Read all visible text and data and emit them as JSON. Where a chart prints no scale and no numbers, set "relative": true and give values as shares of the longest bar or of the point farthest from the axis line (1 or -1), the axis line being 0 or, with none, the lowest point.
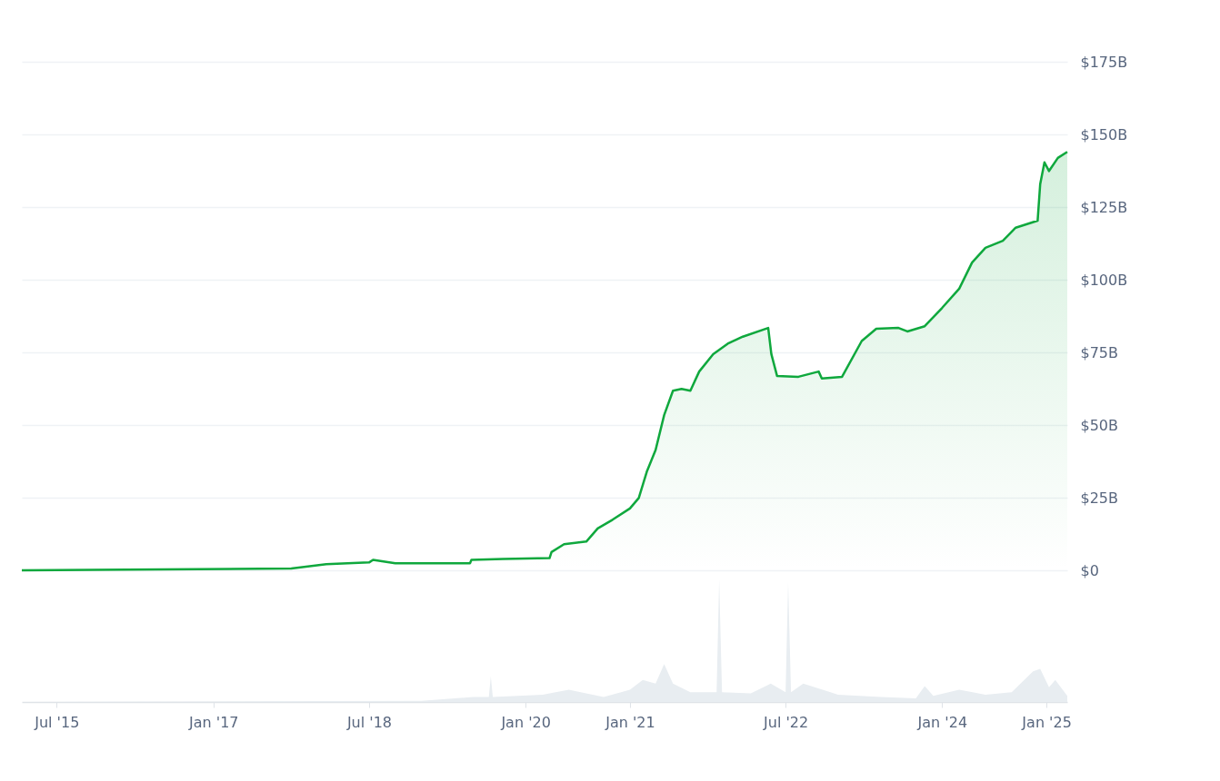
{
  "chart_data": [
    {
      "type": "area",
      "xlim": [
        "2015-03-01",
        "2025-03-15"
      ],
      "ylim": [
        0,
        175
      ],
      "yticks": [
        {
          "value": 0,
          "label": "$0"
        },
        {
          "value": 25,
          "label": "$25B"
        },
        {
          "value": 50,
          "label": "$50B"
        },
        {
          "value": 75,
          "label": "$75B"
        },
        {
          "value": 100,
          "label": "$100B"
        },
        {
          "value": 125,
          "label": "$125B"
        },
        {
          "value": 150,
          "label": "$150B"
        },
        {
          "value": 175,
          "label": "$175B"
        }
      ],
      "grid": "y",
      "tick_labels": "y",
      "x": [
        "2015-03-01",
        "2017-10-01",
        "2018-02-01",
        "2018-07-01",
        "2018-07-15",
        "2018-10-01",
        "2019-06-20",
        "2019-06-25",
        "2019-10-15",
        "2020-03-25",
        "2020-04-01",
        "2020-05-15",
        "2020-08-01",
        "2020-09-10",
        "2020-11-01",
        "2021-01-01",
        "2021-02-01",
        "2021-03-01",
        "2021-04-01",
        "2021-05-01",
        "2021-06-01",
        "2021-07-01",
        "2021-08-01",
        "2021-09-01",
        "2021-10-20",
        "2021-12-10",
        "2022-02-01",
        "2022-05-01",
        "2022-05-12",
        "2022-06-01",
        "2022-08-15",
        "2022-10-25",
        "2022-11-05",
        "2023-01-15",
        "2023-03-25",
        "2023-05-15",
        "2023-08-01",
        "2023-09-01",
        "2023-11-01",
        "2024-01-01",
        "2024-03-01",
        "2024-04-15",
        "2024-06-01",
        "2024-08-01",
        "2024-09-15",
        "2024-12-01",
        "2024-12-10",
        "2024-12-25",
        "2025-01-10",
        "2025-02-10",
        "2025-03-15"
      ],
      "series": [
        {
          "color": "#0fa83d",
          "values": [
            0.0,
            0.6,
            2.1,
            2.7,
            3.6,
            2.4,
            2.4,
            3.6,
            3.9,
            4.2,
            6.3,
            9.0,
            9.9,
            14.4,
            17.4,
            21.3,
            24.9,
            33.9,
            41.4,
            53.4,
            61.8,
            62.4,
            61.8,
            68.4,
            74.4,
            78.0,
            80.4,
            83.4,
            74.4,
            66.9,
            66.6,
            68.4,
            66.0,
            66.6,
            78.9,
            83.1,
            83.4,
            82.2,
            84.0,
            90.3,
            96.9,
            105.9,
            111.0,
            113.4,
            117.9,
            120.3,
            132.9,
            140.4,
            137.4,
            141.9,
            144.0
          ]
        }
      ]
    },
    {
      "type": "area",
      "relative": true,
      "xlim": [
        "2015-03-01",
        "2025-03-15"
      ],
      "tick_labels": "x",
      "xticks": [
        {
          "value": "2015-07-01",
          "label": "Jul '15"
        },
        {
          "value": "2017-01-01",
          "label": "Jan '17"
        },
        {
          "value": "2018-07-01",
          "label": "Jul '18"
        },
        {
          "value": "2020-01-01",
          "label": "Jan '20"
        },
        {
          "value": "2021-01-01",
          "label": "Jan '21"
        },
        {
          "value": "2022-07-01",
          "label": "Jul '22"
        },
        {
          "value": "2024-01-01",
          "label": "Jan '24"
        },
        {
          "value": "2025-01-01",
          "label": "Jan '25"
        }
      ],
      "x": [
        "2015-03-01",
        "2019-01-01",
        "2019-07-01",
        "2019-08-25",
        "2019-09-01",
        "2019-09-08",
        "2020-03-01",
        "2020-06-01",
        "2020-10-01",
        "2021-01-01",
        "2021-02-15",
        "2021-04-01",
        "2021-05-01",
        "2021-06-01",
        "2021-08-01",
        "2021-11-01",
        "2021-11-10",
        "2021-11-20",
        "2022-03-01",
        "2022-05-10",
        "2022-07-01",
        "2022-07-10",
        "2022-07-20",
        "2022-09-01",
        "2023-01-01",
        "2023-06-01",
        "2023-10-01",
        "2023-11-01",
        "2023-12-01",
        "2024-03-01",
        "2024-06-01",
        "2024-09-01",
        "2024-11-15",
        "2024-12-10",
        "2025-01-10",
        "2025-02-01",
        "2025-03-15"
      ],
      "series": [
        {
          "color": "#e8edf1",
          "values": [
            0,
            0.01,
            0.04,
            0.04,
            0.21,
            0.04,
            0.06,
            0.1,
            0.04,
            0.1,
            0.18,
            0.15,
            0.31,
            0.15,
            0.08,
            0.08,
            1.0,
            0.08,
            0.07,
            0.15,
            0.08,
            0.98,
            0.08,
            0.15,
            0.06,
            0.04,
            0.03,
            0.13,
            0.05,
            0.1,
            0.06,
            0.08,
            0.25,
            0.27,
            0.12,
            0.18,
            0.05
          ]
        }
      ]
    }
  ]
}
